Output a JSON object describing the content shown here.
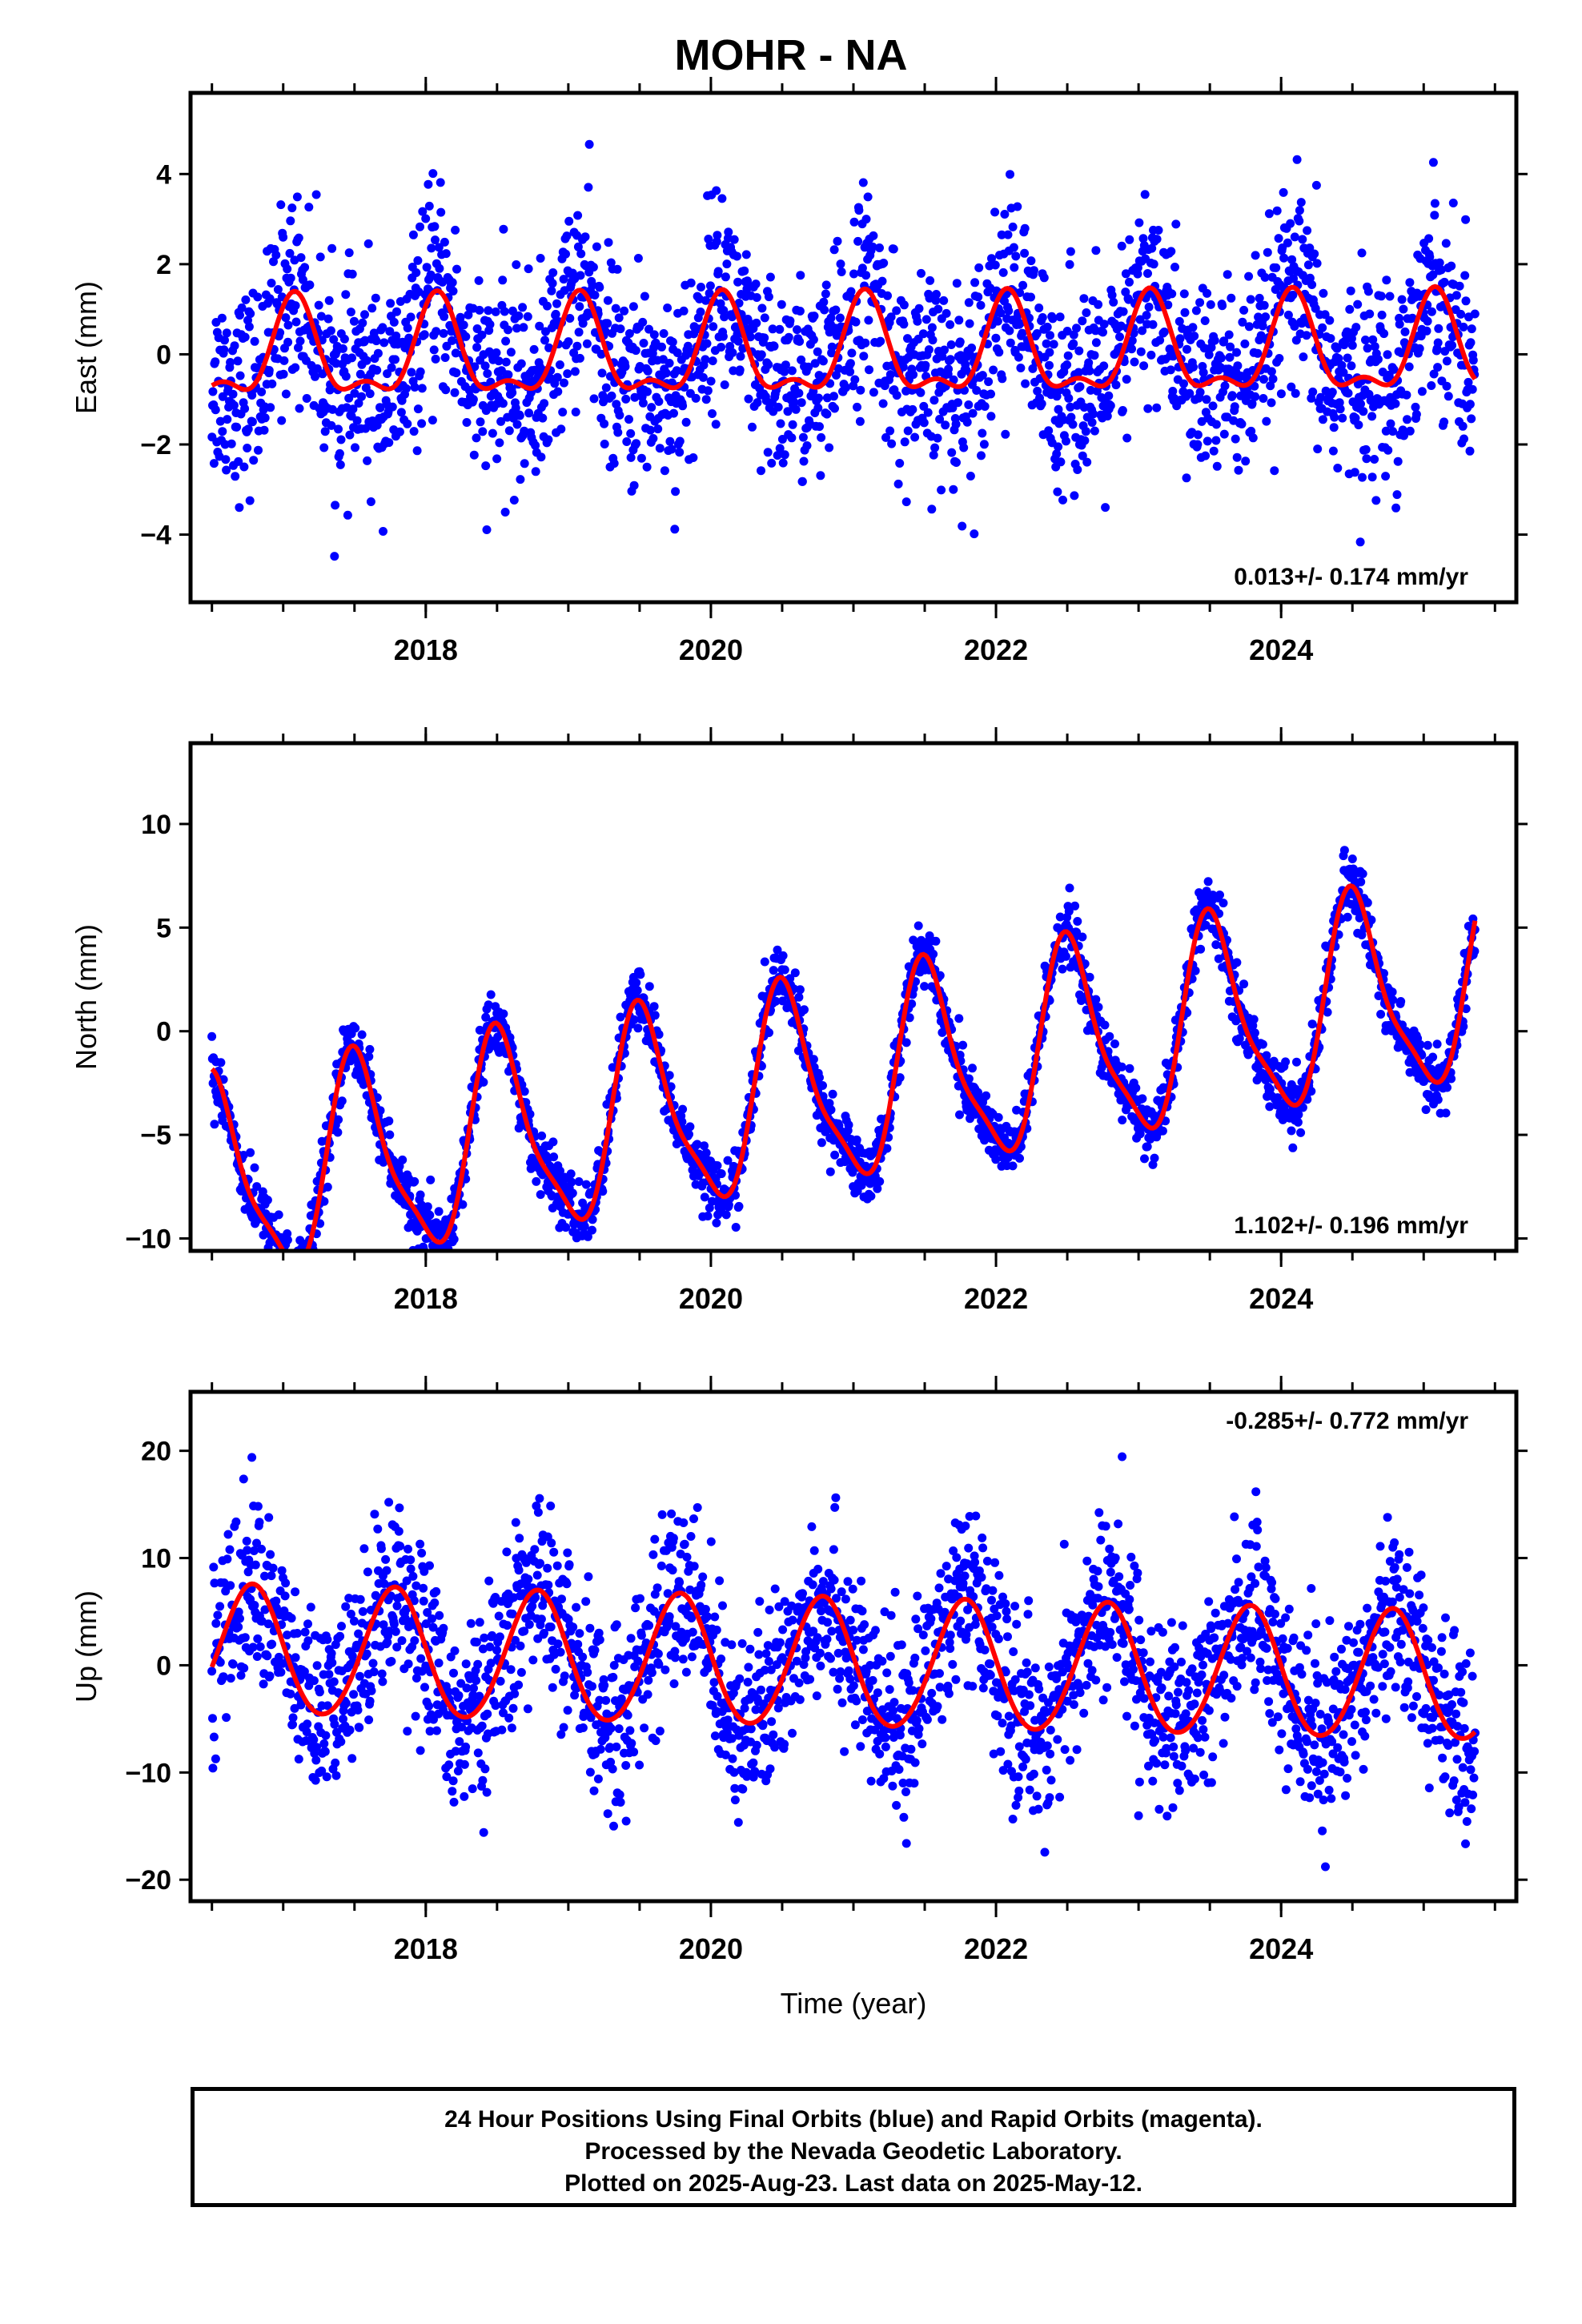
{
  "title": "MOHR - NA",
  "footer": {
    "line1": "24 Hour Positions Using Final Orbits (blue) and Rapid Orbits (magenta).",
    "line2": "Processed by the Nevada Geodetic Laboratory.",
    "line3": "Plotted on 2025-Aug-23. Last data on 2025-May-12."
  },
  "colors": {
    "points": "#0000ff",
    "model_curve": "#ff0000",
    "frame": "#000000"
  },
  "chart_data": [
    {
      "type": "scatter",
      "component": "East",
      "ylabel": "East (mm)",
      "xlabel": "",
      "xlim": [
        2016.35,
        2025.65
      ],
      "ylim": [
        -5.5,
        5.8
      ],
      "xticks": [
        2018,
        2020,
        2022,
        2024
      ],
      "yticks": [
        -4,
        -2,
        0,
        2,
        4
      ],
      "rate_label": "0.013+/- 0.174 mm/yr",
      "rate_position": "bottom-right",
      "model": {
        "offset": 0.0,
        "trend": 0.013,
        "annual_amp": 1.0,
        "annual_peak": 0.08,
        "semiannual_amp": 0.45,
        "semiannual_peak": 0.08
      },
      "data_range": [
        2016.5,
        2025.36
      ],
      "scatter_sd": 1.1,
      "series": [
        {
          "name": "Final Orbits",
          "color": "#0000ff"
        },
        {
          "name": "Rapid Orbits",
          "color": "#ff00ff"
        }
      ]
    },
    {
      "type": "scatter",
      "component": "North",
      "ylabel": "North (mm)",
      "xlabel": "",
      "xlim": [
        2016.35,
        2025.65
      ],
      "ylim": [
        -10.6,
        13.9
      ],
      "xticks": [
        2018,
        2020,
        2022,
        2024
      ],
      "yticks": [
        -10,
        -5,
        0,
        5,
        10
      ],
      "rate_label": "1.102+/- 0.196 mm/yr",
      "rate_position": "bottom-right",
      "model": {
        "offset": -2.5,
        "trend": 1.102,
        "annual_amp": 4.7,
        "annual_peak": 0.52,
        "semiannual_amp": 1.2,
        "semiannual_peak": 0.45
      },
      "data_range": [
        2016.5,
        2025.36
      ],
      "scatter_sd": 0.75,
      "series": [
        {
          "name": "Final Orbits",
          "color": "#0000ff"
        },
        {
          "name": "Rapid Orbits",
          "color": "#ff00ff"
        }
      ]
    },
    {
      "type": "scatter",
      "component": "Up",
      "ylabel": "Up (mm)",
      "xlabel": "Time (year)",
      "xlim": [
        2016.35,
        2025.65
      ],
      "ylim": [
        -22,
        25.5
      ],
      "xticks": [
        2018,
        2020,
        2022,
        2024
      ],
      "yticks": [
        -20,
        -10,
        0,
        10,
        20
      ],
      "rate_label": "-0.285+/- 0.772 mm/yr",
      "rate_position": "top-right",
      "model": {
        "offset": 0.0,
        "trend": -0.285,
        "annual_amp": 6.0,
        "annual_peak": 0.78,
        "semiannual_amp": 0.4,
        "semiannual_peak": 0.3
      },
      "data_range": [
        2016.5,
        2025.36
      ],
      "scatter_sd": 4.2,
      "series": [
        {
          "name": "Final Orbits",
          "color": "#0000ff"
        },
        {
          "name": "Rapid Orbits",
          "color": "#ff00ff"
        }
      ]
    }
  ]
}
